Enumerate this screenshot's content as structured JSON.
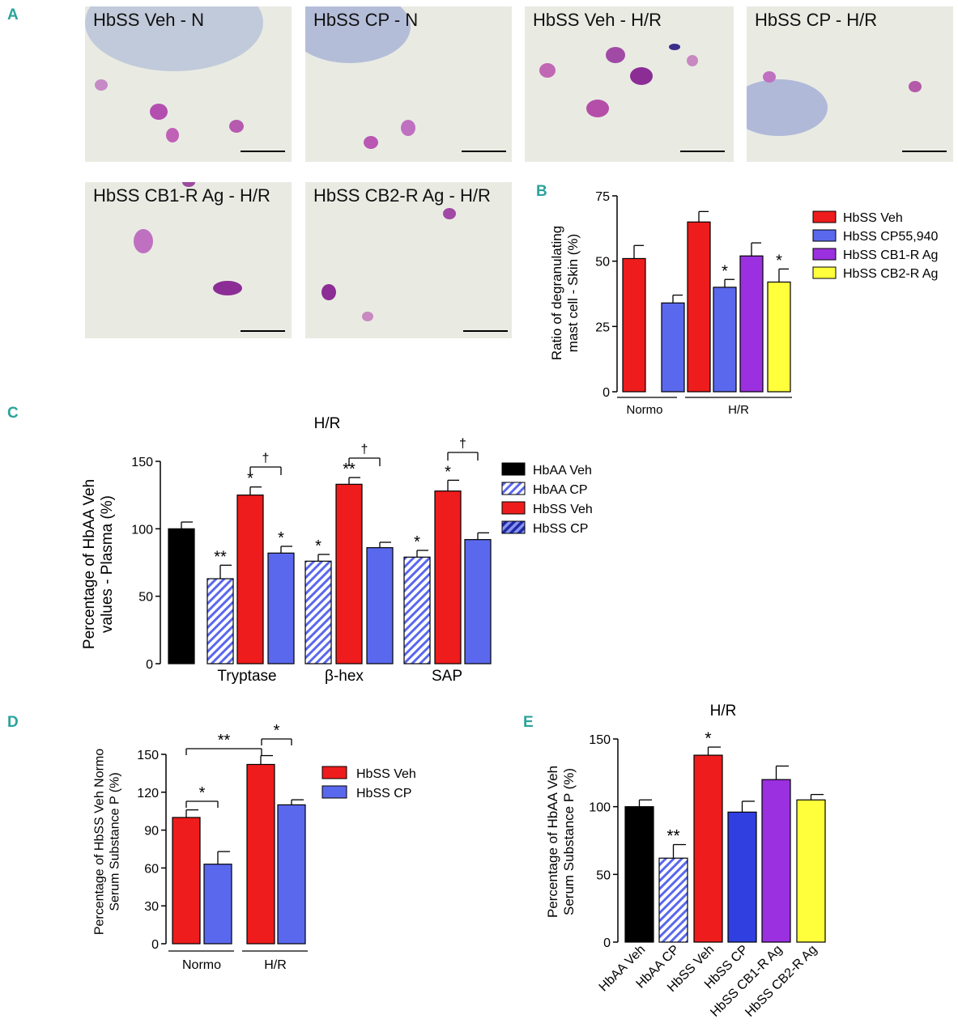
{
  "panels": {
    "a": {
      "letter": "A",
      "images": [
        {
          "label": "HbSS Veh - N"
        },
        {
          "label": "HbSS CP - N"
        },
        {
          "label": "HbSS Veh - H/R"
        },
        {
          "label": "HbSS CP - H/R"
        },
        {
          "label": "HbSS CB1-R Ag - H/R"
        },
        {
          "label": "HbSS CB2-R Ag - H/R"
        }
      ]
    },
    "b": {
      "letter": "B"
    },
    "c": {
      "letter": "C"
    },
    "d": {
      "letter": "D"
    },
    "e": {
      "letter": "E"
    }
  },
  "colors": {
    "red": "#ee1c1c",
    "blue": "#5a68ee",
    "purple": "#9b30e0",
    "yellow": "#ffff3c",
    "black": "#000000",
    "darkblue": "#2f3fe0"
  },
  "chart_data": [
    {
      "id": "B",
      "type": "bar",
      "ylabel": "Ratio of degranulating mast cell - Skin (%)",
      "ylim": [
        0,
        75
      ],
      "yticks": [
        0,
        25,
        50,
        75
      ],
      "groups": [
        {
          "label": "Normo"
        },
        {
          "label": "H/R"
        }
      ],
      "series": [
        {
          "name": "HbSS Veh",
          "color": "red",
          "values": [
            51,
            65
          ],
          "err": [
            5,
            4
          ],
          "sig": [
            "",
            ""
          ]
        },
        {
          "name": "HbSS CP55,940",
          "color": "blue",
          "values": [
            34,
            40
          ],
          "err": [
            3,
            3
          ],
          "sig": [
            "",
            "*"
          ]
        },
        {
          "name": "HbSS CB1-R Ag",
          "color": "purple",
          "values": [
            null,
            52
          ],
          "err": [
            null,
            5
          ],
          "sig": [
            "",
            ""
          ]
        },
        {
          "name": "HbSS CB2-R Ag",
          "color": "yellow",
          "values": [
            null,
            42
          ],
          "err": [
            null,
            5
          ],
          "sig": [
            "",
            "*"
          ]
        }
      ]
    },
    {
      "id": "C",
      "type": "bar",
      "title": "H/R",
      "ylabel": "Percentage of HbAA Veh values - Plasma (%)",
      "ylim": [
        0,
        150
      ],
      "yticks": [
        0,
        50,
        100,
        150
      ],
      "legend": [
        {
          "name": "HbAA Veh",
          "color": "black",
          "pattern": "solid"
        },
        {
          "name": "HbAA CP",
          "color": "blue",
          "pattern": "hatch"
        },
        {
          "name": "HbSS Veh",
          "color": "red",
          "pattern": "solid"
        },
        {
          "name": "HbSS CP",
          "color": "darkblue",
          "pattern": "hatch"
        }
      ],
      "groups": [
        {
          "label": "Tryptase"
        },
        {
          "label": "β-hex"
        },
        {
          "label": "SAP"
        }
      ],
      "bars": [
        {
          "group": "",
          "series": "HbAA Veh",
          "value": 100,
          "err": 5,
          "sig": "",
          "pattern": "solid",
          "color": "black"
        },
        {
          "group": "Tryptase",
          "series": "HbAA CP",
          "value": 63,
          "err": 10,
          "sig": "**",
          "pattern": "hatch",
          "color": "blue"
        },
        {
          "group": "Tryptase",
          "series": "HbSS Veh",
          "value": 125,
          "err": 6,
          "sig": "*",
          "pattern": "solid",
          "color": "red"
        },
        {
          "group": "Tryptase",
          "series": "HbSS CP",
          "value": 82,
          "err": 5,
          "sig": "*",
          "pattern": "solid",
          "color": "blue"
        },
        {
          "group": "β-hex",
          "series": "HbAA CP",
          "value": 76,
          "err": 5,
          "sig": "*",
          "pattern": "hatch",
          "color": "blue"
        },
        {
          "group": "β-hex",
          "series": "HbSS Veh",
          "value": 133,
          "err": 5,
          "sig": "**",
          "pattern": "solid",
          "color": "red"
        },
        {
          "group": "β-hex",
          "series": "HbSS CP",
          "value": 86,
          "err": 4,
          "sig": "",
          "pattern": "solid",
          "color": "blue"
        },
        {
          "group": "SAP",
          "series": "HbAA CP",
          "value": 79,
          "err": 5,
          "sig": "*",
          "pattern": "hatch",
          "color": "blue"
        },
        {
          "group": "SAP",
          "series": "HbSS Veh",
          "value": 128,
          "err": 8,
          "sig": "*",
          "pattern": "solid",
          "color": "red"
        },
        {
          "group": "SAP",
          "series": "HbSS CP",
          "value": 92,
          "err": 5,
          "sig": "",
          "pattern": "solid",
          "color": "blue"
        }
      ],
      "brackets": [
        {
          "label": "†"
        },
        {
          "label": "†"
        },
        {
          "label": "†"
        }
      ]
    },
    {
      "id": "D",
      "type": "bar",
      "ylabel": "Percentage of HbSS Veh Normo Serum Substance P (%)",
      "ylim": [
        0,
        150
      ],
      "yticks": [
        0,
        30,
        60,
        90,
        120,
        150
      ],
      "groups": [
        {
          "label": "Normo"
        },
        {
          "label": "H/R"
        }
      ],
      "series": [
        {
          "name": "HbSS Veh",
          "color": "red",
          "values": [
            100,
            142
          ],
          "err": [
            6,
            7
          ]
        },
        {
          "name": "HbSS CP",
          "color": "blue",
          "values": [
            63,
            110
          ],
          "err": [
            10,
            4
          ]
        }
      ],
      "brackets": [
        {
          "label": "*"
        },
        {
          "label": "**"
        },
        {
          "label": "*"
        }
      ]
    },
    {
      "id": "E",
      "type": "bar",
      "title": "H/R",
      "ylabel": "Percentage of HbAA Veh Serum Substance P (%)",
      "ylim": [
        0,
        150
      ],
      "yticks": [
        0,
        50,
        100,
        150
      ],
      "categories": [
        "HbAA Veh",
        "HbAA CP",
        "HbSS Veh",
        "HbSS CP",
        "HbSS CB1-R Ag",
        "HbSS CB2-R Ag"
      ],
      "values": [
        100,
        62,
        138,
        96,
        120,
        105
      ],
      "err": [
        5,
        10,
        6,
        8,
        10,
        4
      ],
      "sig": [
        "",
        "**",
        "*",
        "",
        "",
        ""
      ],
      "colors": [
        "black",
        "blue",
        "red",
        "darkblue",
        "purple",
        "yellow"
      ],
      "patterns": [
        "solid",
        "hatch",
        "solid",
        "solid",
        "solid",
        "solid"
      ]
    }
  ]
}
